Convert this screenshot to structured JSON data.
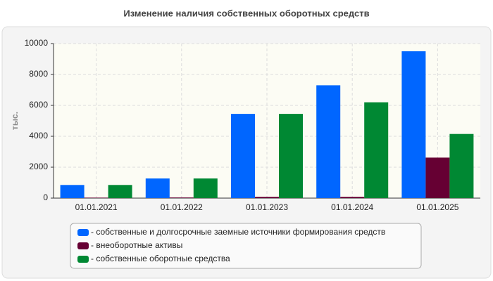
{
  "chart_data": {
    "type": "bar",
    "title": "Изменение наличия собственных оборотных средств",
    "y_label": "тыс.",
    "categories": [
      "01.01.2021",
      "01.01.2022",
      "01.01.2023",
      "01.01.2024",
      "01.01.2025"
    ],
    "series": [
      {
        "name": "- собственные и долгосрочные заемные источники формирования средств",
        "color": "#0066ff",
        "values": [
          850,
          1270,
          5450,
          7300,
          9500
        ]
      },
      {
        "name": "- внеоборотные активы",
        "color": "#660033",
        "values": [
          30,
          40,
          80,
          80,
          2620
        ]
      },
      {
        "name": "- собственные оборотные средства",
        "color": "#008833",
        "values": [
          850,
          1270,
          5450,
          6200,
          4150
        ]
      }
    ],
    "ylim": [
      0,
      10000
    ],
    "yticks": [
      0,
      2000,
      4000,
      6000,
      8000,
      10000
    ],
    "grid": true
  }
}
